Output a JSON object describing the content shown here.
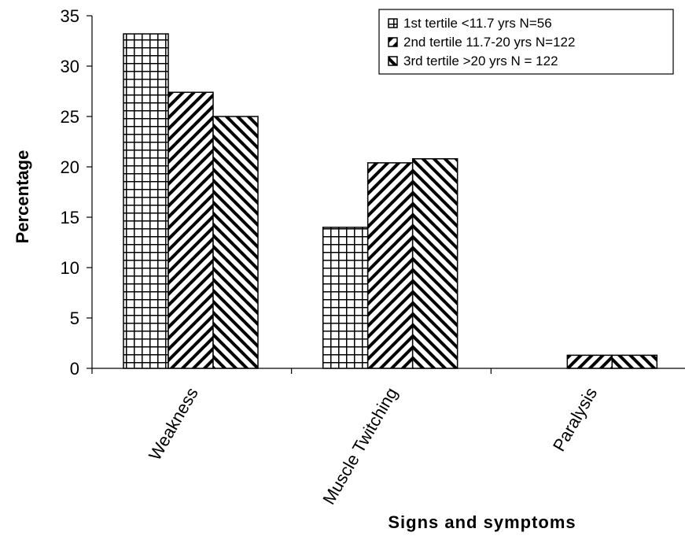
{
  "chart_data": {
    "type": "bar",
    "title": "",
    "xlabel": "Signs and symptoms",
    "ylabel": "Percentage",
    "ylim": [
      0,
      35
    ],
    "yticks": [
      0,
      5,
      10,
      15,
      20,
      25,
      30,
      35
    ],
    "grid": false,
    "legend_position": "top-right",
    "categories": [
      "Weakness",
      "Muscle Twitching",
      "Paralysis"
    ],
    "series": [
      {
        "name": "1st tertile <11.7 yrs N=56",
        "pattern": "grid",
        "values": [
          33.2,
          14.0,
          0
        ]
      },
      {
        "name": "2nd tertile 11.7-20 yrs N=122",
        "pattern": "diagonal-up",
        "values": [
          27.4,
          20.4,
          1.3
        ]
      },
      {
        "name": "3rd tertile >20 yrs N = 122",
        "pattern": "diagonal-down",
        "values": [
          25.0,
          20.8,
          1.3
        ]
      }
    ]
  }
}
